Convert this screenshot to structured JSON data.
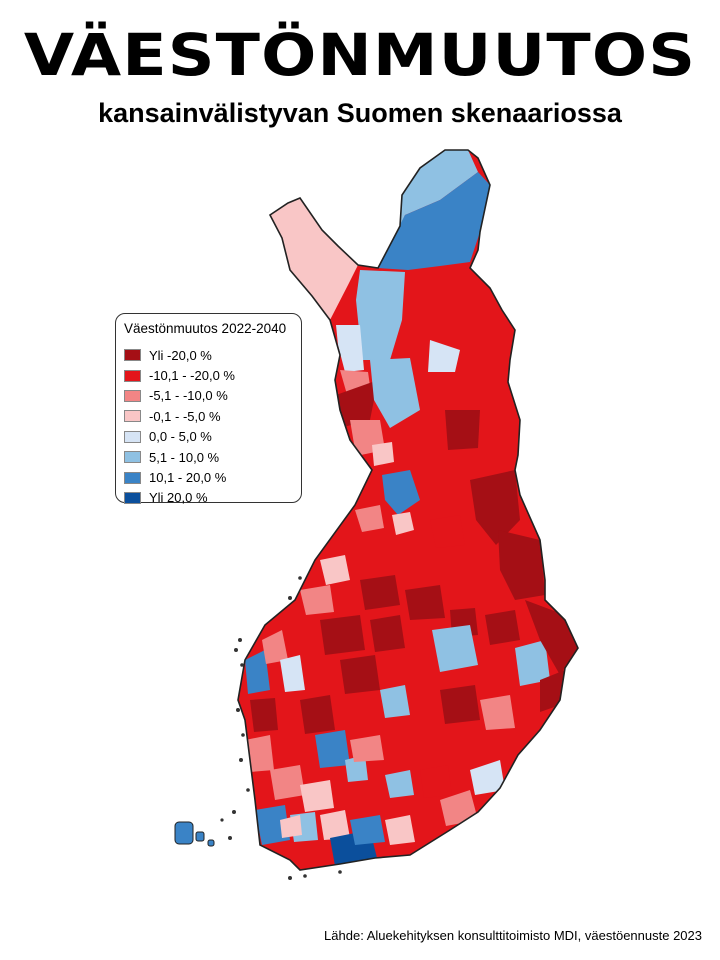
{
  "title": "VÄESTÖNMUUTOS",
  "subtitle": "kansainvälistyvan Suomen skenaariossa",
  "legend": {
    "title": "Väestönmuutos 2022-2040",
    "items": [
      {
        "label": "Yli -20,0 %",
        "color": "#a50f15"
      },
      {
        "label": "-10,1 - -20,0 %",
        "color": "#e3151a"
      },
      {
        "label": "-5,1 - -10,0 %",
        "color": "#f28585"
      },
      {
        "label": "-0,1 - -5,0 %",
        "color": "#f9c6c6"
      },
      {
        "label": "0,0 - 5,0 %",
        "color": "#d6e4f5"
      },
      {
        "label": "5,1 - 10,0 %",
        "color": "#8fc1e3"
      },
      {
        "label": "10,1 - 20,0 %",
        "color": "#3a83c6"
      },
      {
        "label": "Yli 20,0 %",
        "color": "#0b4f9c"
      }
    ]
  },
  "source": "Lähde: Aluekehityksen konsulttitoimisto MDI, väestöennuste 2023"
}
